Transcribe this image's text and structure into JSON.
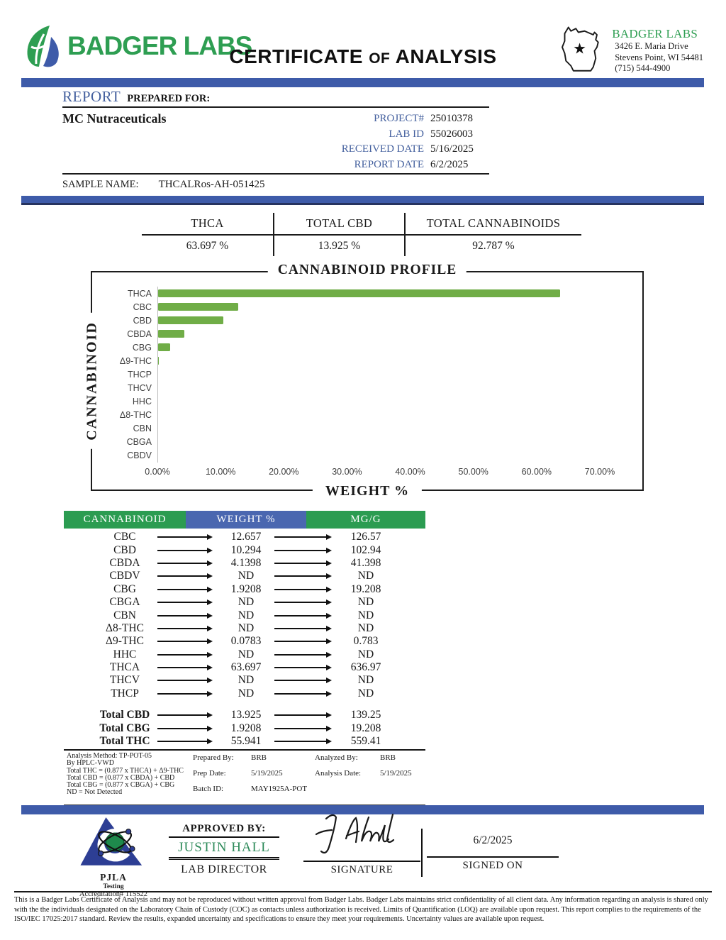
{
  "header": {
    "logo_text": "BADGER LABS",
    "title": {
      "left": "CERTIFICATE",
      "of": "OF",
      "right": "ANALYSIS"
    },
    "lab_card": {
      "name": "BADGER LABS",
      "address1": "3426 E. Maria Drive",
      "address2": "Stevens Point, WI 54481",
      "phone": "(715) 544-4900",
      "star_icon": "★"
    }
  },
  "report": {
    "report_label": "REPORT",
    "prepared_for_label": "PREPARED FOR:",
    "client": "MC Nutraceuticals",
    "fields": [
      {
        "label": "PROJECT#",
        "value": "25010378"
      },
      {
        "label": "LAB ID",
        "value": "55026003"
      },
      {
        "label": "RECEIVED DATE",
        "value": "5/16/2025"
      },
      {
        "label": "REPORT DATE",
        "value": "6/2/2025"
      }
    ],
    "sample_name_label": "SAMPLE NAME:",
    "sample_name": "THCALRos-AH-051425"
  },
  "summary": {
    "columns": [
      {
        "label": "THCA",
        "value": "63.697 %"
      },
      {
        "label": "TOTAL CBD",
        "value": "13.925 %"
      },
      {
        "label": "TOTAL CANNABINOIDS",
        "value": "92.787 %"
      }
    ]
  },
  "chart_data": {
    "type": "bar",
    "orientation": "horizontal",
    "title": "CANNABINOID PROFILE",
    "xlabel": "WEIGHT %",
    "ylabel": "CANNABINOID",
    "categories": [
      "THCA",
      "CBC",
      "CBD",
      "CBDA",
      "CBG",
      "Δ9-THC",
      "THCP",
      "THCV",
      "HHC",
      "Δ8-THC",
      "CBN",
      "CBGA",
      "CBDV"
    ],
    "values": [
      63.697,
      12.657,
      10.294,
      4.1398,
      1.9208,
      0.0783,
      0,
      0,
      0,
      0,
      0,
      0,
      0
    ],
    "xlim": [
      0,
      70
    ],
    "x_ticks": [
      "0.00%",
      "10.00%",
      "20.00%",
      "30.00%",
      "40.00%",
      "50.00%",
      "60.00%",
      "70.00%"
    ],
    "bar_color": "#70AD47",
    "grid": false,
    "legend": "none"
  },
  "results_table": {
    "headers": [
      "CANNABINOID",
      "WEIGHT %",
      "MG/G"
    ],
    "header_colors": [
      "#2B9C51",
      "#4A67B0",
      "#2B9C51"
    ],
    "rows": [
      [
        "CBC",
        "12.657",
        "126.57"
      ],
      [
        "CBD",
        "10.294",
        "102.94"
      ],
      [
        "CBDA",
        "4.1398",
        "41.398"
      ],
      [
        "CBDV",
        "ND",
        "ND"
      ],
      [
        "CBG",
        "1.9208",
        "19.208"
      ],
      [
        "CBGA",
        "ND",
        "ND"
      ],
      [
        "CBN",
        "ND",
        "ND"
      ],
      [
        "Δ8-THC",
        "ND",
        "ND"
      ],
      [
        "Δ9-THC",
        "0.0783",
        "0.783"
      ],
      [
        "HHC",
        "ND",
        "ND"
      ],
      [
        "THCA",
        "63.697",
        "636.97"
      ],
      [
        "THCV",
        "ND",
        "ND"
      ],
      [
        "THCP",
        "ND",
        "ND"
      ]
    ],
    "totals": [
      [
        "Total CBD",
        "13.925",
        "139.25"
      ],
      [
        "Total CBG",
        "1.9208",
        "19.208"
      ],
      [
        "Total THC",
        "55.941",
        "559.41"
      ]
    ]
  },
  "notes": {
    "method_lines": [
      "Analysis Method: TP-POT-05",
      "By HPLC-VWD",
      "Total THC = (0.877 x  THCA) + Δ9-THC",
      "Total CBD = (0.877 x  CBDA) + CBD",
      "Total CBG = (0.877 x  CBGA) + CBG",
      "ND = Not Detected"
    ],
    "prep": [
      {
        "label": "Prepared By:",
        "value": "BRB"
      },
      {
        "label": "Prep Date:",
        "value": "5/19/2025"
      },
      {
        "label": "Batch ID:",
        "value": "MAY1925A-POT"
      }
    ],
    "analysis": [
      {
        "label": "Analyzed By:",
        "value": "BRB"
      },
      {
        "label": "Analysis Date:",
        "value": "5/19/2025"
      }
    ]
  },
  "approval": {
    "approved_by_label": "APPROVED BY:",
    "approver": "JUSTIN HALL",
    "approver_title": "LAB DIRECTOR",
    "signature_label": "SIGNATURE",
    "signed_on_label": "SIGNED ON",
    "signed_on_date": "6/2/2025",
    "accreditation": {
      "org": "PJLA",
      "sub": "Testing",
      "number": "Accreditation# 115522"
    }
  },
  "footer": {
    "disclaimer": "This is a Badger Labs Certificate of Analysis and may not be reproduced without written approval from Badger Labs. Badger Labs maintains strict confidentiality of all client data. Any information regarding an analysis is shared only with the the individuals designated on the Laboratory Chain of Custody (COC) as contacts unless authorization is received. Limits of Quantification (LOQ) are available upon request. This report complies to the requirements of the ISO/IEC 17025:2017 standard. Review the results, expanded uncertainty and specifications to ensure they meet your requirements. Uncertainty values are available upon request."
  },
  "colors": {
    "accent_blue": "#3E5BA9",
    "table_header_green": "#2B9C51",
    "table_header_blue": "#4A67B0",
    "chart_bar_green": "#70AD47",
    "logo_green": "#2E9E52",
    "field_label_blue": "#44609E",
    "approver_green": "#2F8B5B"
  }
}
